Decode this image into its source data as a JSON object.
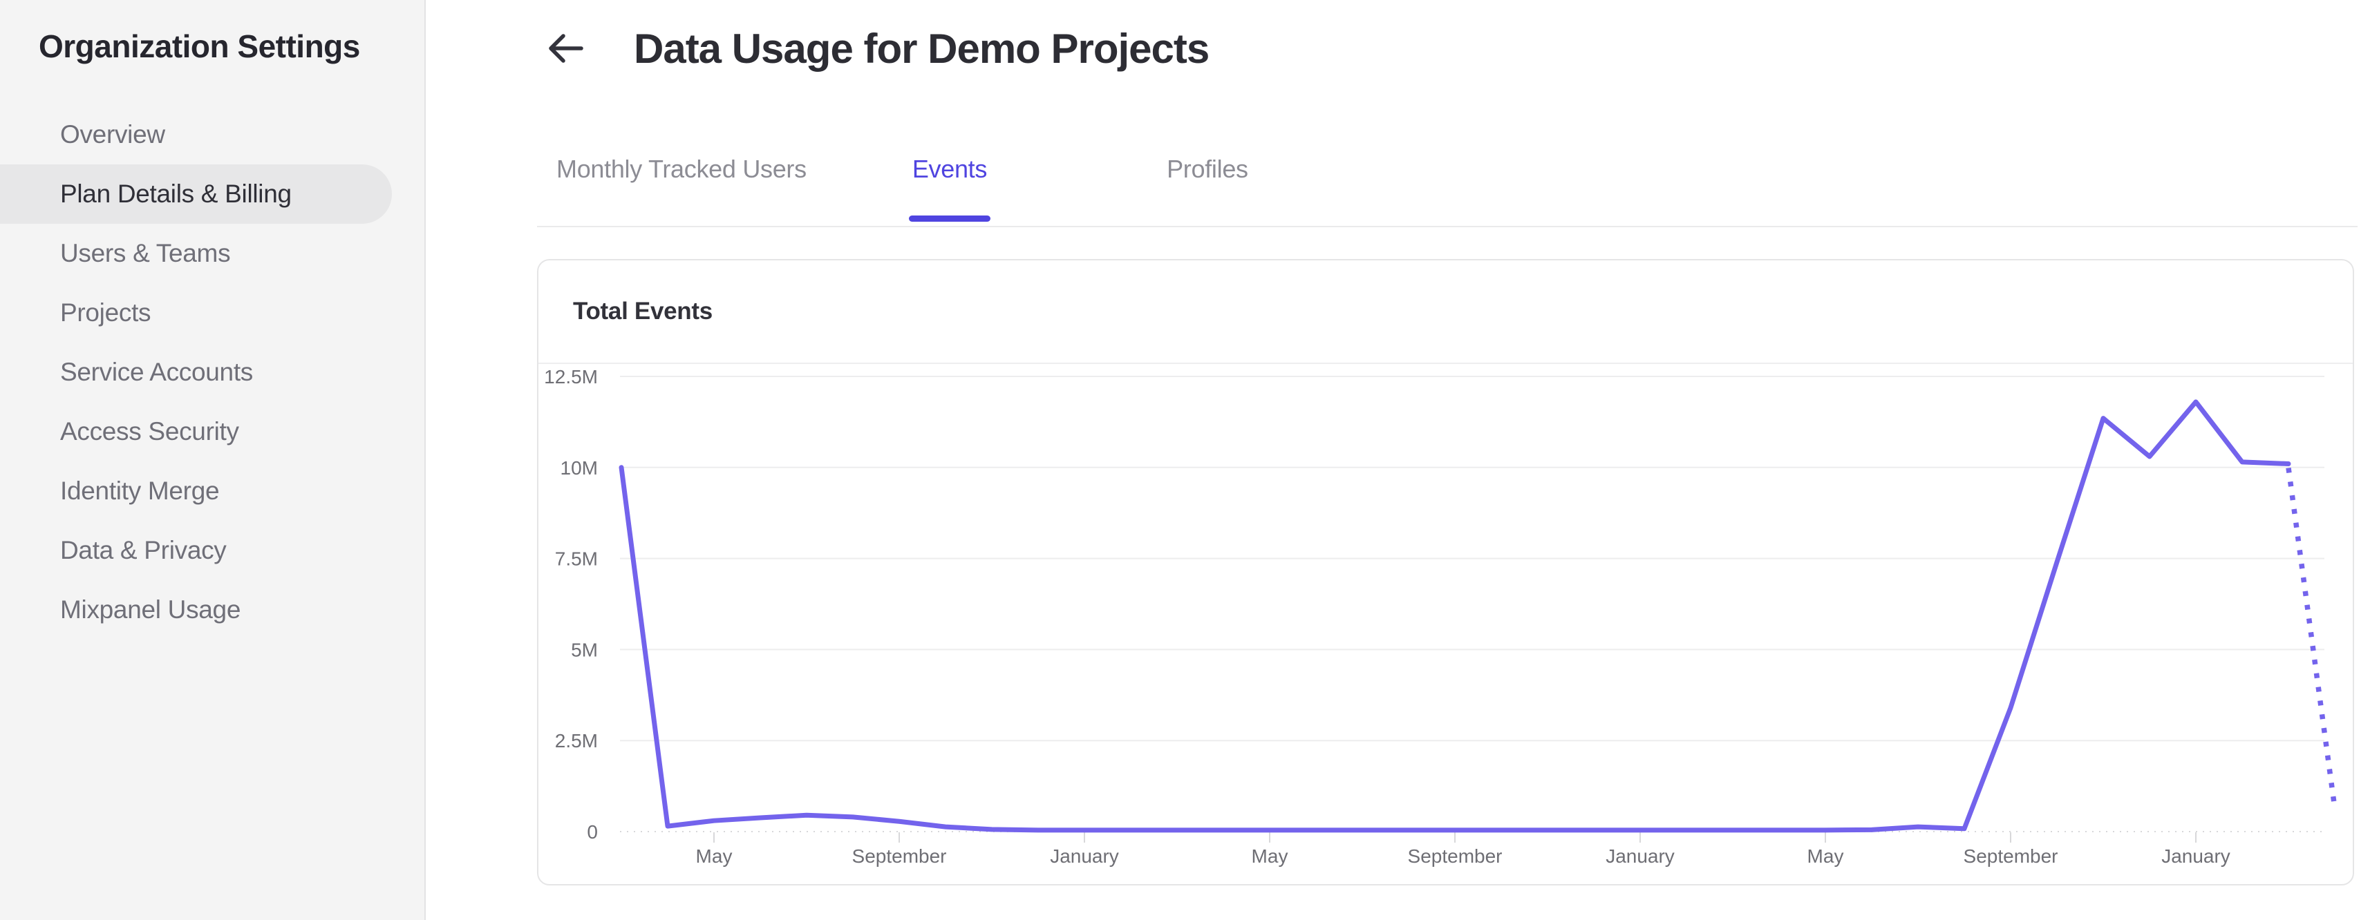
{
  "sidebar": {
    "title": "Organization Settings",
    "items": [
      {
        "label": "Overview",
        "active": false
      },
      {
        "label": "Plan Details & Billing",
        "active": true
      },
      {
        "label": "Users & Teams",
        "active": false
      },
      {
        "label": "Projects",
        "active": false
      },
      {
        "label": "Service Accounts",
        "active": false
      },
      {
        "label": "Access Security",
        "active": false
      },
      {
        "label": "Identity Merge",
        "active": false
      },
      {
        "label": "Data & Privacy",
        "active": false
      },
      {
        "label": "Mixpanel Usage",
        "active": false
      }
    ]
  },
  "header": {
    "title": "Data Usage for Demo Projects",
    "back_icon": "back-arrow"
  },
  "tabs": {
    "items": [
      {
        "label": "Monthly Tracked Users",
        "active": false
      },
      {
        "label": "Events",
        "active": true
      },
      {
        "label": "Profiles",
        "active": false
      }
    ]
  },
  "card": {
    "title": "Total Events"
  },
  "chart_data": {
    "type": "line",
    "title": "Total Events",
    "series": [
      {
        "name": "Total Events",
        "values_millions": [
          10,
          0.15,
          0.3,
          0.38,
          0.45,
          0.4,
          0.28,
          0.13,
          0.06,
          0.04,
          0.04,
          0.04,
          0.04,
          0.04,
          0.04,
          0.04,
          0.04,
          0.04,
          0.04,
          0.04,
          0.04,
          0.04,
          0.04,
          0.04,
          0.04,
          0.04,
          0.04,
          0.05,
          0.13,
          0.08,
          3.4,
          7.4,
          11.35,
          10.3,
          11.8,
          10.15,
          10.1,
          0.65
        ],
        "solid_through_index": 36,
        "projected_dotted_tail": true
      }
    ],
    "x_axis": {
      "total_monthly_points": 38,
      "tick_point_indices": [
        2,
        6,
        10,
        14,
        18,
        22,
        26,
        30,
        34
      ],
      "tick_labels": [
        "May",
        "September",
        "January",
        "May",
        "September",
        "January",
        "May",
        "September",
        "January"
      ]
    },
    "y_axis": {
      "tick_values_millions": [
        0,
        2.5,
        5,
        7.5,
        10,
        12.5
      ],
      "tick_labels": [
        "0",
        "2.5M",
        "5M",
        "7.5M",
        "10M",
        "12.5M"
      ],
      "max_millions": 12.5,
      "grid": true
    },
    "legend": "none",
    "colors": {
      "line": "#7363ec",
      "active_tab": "#4f44e0",
      "grid": "#ededee",
      "baseline": "#d8d8da",
      "tick": "#d8d8da",
      "axis_text": "#6e6e74"
    }
  }
}
